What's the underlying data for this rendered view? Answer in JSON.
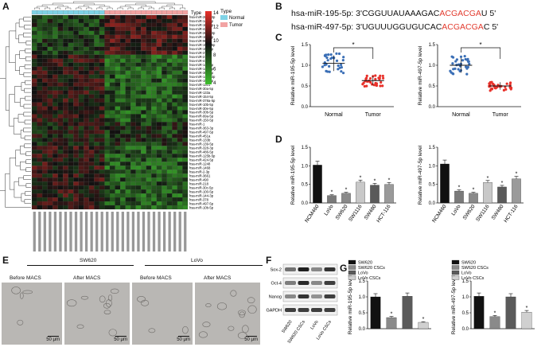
{
  "panels": {
    "A": "A",
    "B": "B",
    "C": "C",
    "D": "D",
    "E": "E",
    "F": "F",
    "G": "G"
  },
  "heatmap": {
    "type_label": "Type",
    "legend_title": "Type",
    "legend_normal": "Normal",
    "legend_tumor": "Tumor",
    "scale_ticks": [
      "14",
      "12",
      "10",
      "8",
      "6",
      "4"
    ],
    "colors": {
      "normal": "#7fd3e6",
      "tumor": "#f2a3a3",
      "high": "#e8312a",
      "mid": "#111111",
      "low": "#3fbf2e"
    },
    "row_labels": [
      "hsa-miR-200b-3p",
      "hsa-miR-141-3p",
      "hsa-miR-183-5p",
      "hsa-miR-429",
      "hsa-miR-200a-3p",
      "hsa-miR-182-5p",
      "hsa-miR-96-5p",
      "hsa-miR-196b-5p",
      "hsa-miR-19b-3p",
      "hsa-miR-378c",
      "hsa-miR-2113",
      "hsa-miR-411",
      "hsa-miR-143-3p",
      "hsa-miR-145-5p",
      "hsa-miR-30d-5p",
      "hsa-miR-148a-3p",
      "hsa-miR-195-5p",
      "hsa-miR-1301",
      "hsa-miR-30a-5p",
      "hsa-miR-133a",
      "hsa-miR-154-5p",
      "hsa-miR-378a-5p",
      "hsa-miR-10b-5p",
      "hsa-miR-30e-5p",
      "hsa-miR-30b-5p",
      "hsa-miR-99a-5p",
      "hsa-miR-150-5p",
      "hsa-miR-1",
      "hsa-miR-363-3p",
      "hsa-miR-497-5p",
      "hsa-miR-451a",
      "hsa-miR-133b",
      "hsa-miR-139-5p",
      "hsa-miR-328-3p",
      "hsa-miR-486-5p",
      "hsa-miR-125b-5p",
      "hsa-miR-424-5p",
      "hsa-miR-1248",
      "hsa-miR-1468",
      "hsa-miR-2-3p",
      "hsa-miR-3661",
      "hsa-miR-490",
      "hsa-miR-218",
      "hsa-miR-30c-5p",
      "hsa-miR-100-5p",
      "hsa-miR-144-3p",
      "hsa-miR-378",
      "hsa-miR-497-5p",
      "hsa-miR-10b-5p"
    ]
  },
  "sequences": {
    "line1_prefix": "hsa-miR-195-5p:  3'CGGUUAUAAAGAC",
    "line1_highlight": "ACGACGA",
    "line1_suffix": "U 5'",
    "line2_prefix": "hsa-miR-497-5p:  3'UGUUUGGUGUCAC",
    "line2_highlight": "ACGACGA",
    "line2_suffix": "C 5'"
  },
  "chart_data": [
    {
      "id": "C1",
      "type": "scatter",
      "ylabel": "Relative miR-195-5p level",
      "categories": [
        "Normal",
        "Tumor"
      ],
      "means": [
        1.05,
        0.63
      ],
      "ylim": [
        0,
        1.5
      ],
      "yticks": [
        "0.0",
        "0.5",
        "1.0",
        "1.5"
      ],
      "significance": "*",
      "colors": [
        "#3b6fb6",
        "#e8312a"
      ]
    },
    {
      "id": "C2",
      "type": "scatter",
      "ylabel": "Relative miR-497-5p level",
      "categories": [
        "Normal",
        "Tumor"
      ],
      "means": [
        1.0,
        0.5
      ],
      "ylim": [
        0,
        1.5
      ],
      "yticks": [
        "0.0",
        "0.5",
        "1.0",
        "1.5"
      ],
      "significance": "*",
      "colors": [
        "#3b6fb6",
        "#e8312a"
      ]
    },
    {
      "id": "D1",
      "type": "bar",
      "ylabel": "Relative miR-195-5p level",
      "categories": [
        "NCM460",
        "LoVo",
        "SW620",
        "SW1116",
        "SW480",
        "HCT-116"
      ],
      "values": [
        1.02,
        0.2,
        0.26,
        0.56,
        0.48,
        0.5
      ],
      "ylim": [
        0,
        1.5
      ],
      "yticks": [
        "0.0",
        "0.5",
        "1.0",
        "1.5"
      ],
      "stars": [
        "",
        "*",
        "*",
        "*",
        "*",
        "*"
      ],
      "colors": [
        "#111111",
        "#7a7a7a",
        "#8a8a8a",
        "#c8c8c8",
        "#5a5a5a",
        "#9a9a9a"
      ]
    },
    {
      "id": "D2",
      "type": "bar",
      "ylabel": "Relative miR-497-5p level",
      "categories": [
        "NCM460",
        "LoVo",
        "SW620",
        "SW1116",
        "SW480",
        "HCT-116"
      ],
      "values": [
        1.05,
        0.32,
        0.26,
        0.55,
        0.43,
        0.65
      ],
      "ylim": [
        0,
        1.5
      ],
      "yticks": [
        "0.0",
        "0.5",
        "1.0",
        "1.5"
      ],
      "stars": [
        "",
        "*",
        "*",
        "*",
        "*",
        "*"
      ],
      "colors": [
        "#111111",
        "#7a7a7a",
        "#8a8a8a",
        "#c8c8c8",
        "#5a5a5a",
        "#9a9a9a"
      ]
    },
    {
      "id": "G1",
      "type": "bar",
      "ylabel": "Relative miR-195-5p level",
      "categories": [
        "SW620",
        "SW620 CSCs",
        "LoVo",
        "LoVo CSCs"
      ],
      "values": [
        1.0,
        0.35,
        1.02,
        0.2
      ],
      "ylim": [
        0,
        1.5
      ],
      "yticks": [
        "0.0",
        "0.5",
        "1.0",
        "1.5"
      ],
      "stars": [
        "",
        "*",
        "",
        "*"
      ],
      "colors": [
        "#111111",
        "#8a8a8a",
        "#5a5a5a",
        "#d0d0d0"
      ]
    },
    {
      "id": "G2",
      "type": "bar",
      "ylabel": "Relative miR-497-5p level",
      "categories": [
        "SW620",
        "SW620 CSCs",
        "LoVo",
        "LoVo CSCs"
      ],
      "values": [
        1.02,
        0.38,
        1.0,
        0.52
      ],
      "ylim": [
        0,
        1.5
      ],
      "yticks": [
        "0.0",
        "0.5",
        "1.0",
        "1.5"
      ],
      "stars": [
        "",
        "*",
        "",
        "*"
      ],
      "colors": [
        "#111111",
        "#8a8a8a",
        "#5a5a5a",
        "#d0d0d0"
      ]
    }
  ],
  "microscopy": {
    "group1": "SW620",
    "group2": "LoVo",
    "before": "Before MACS",
    "after": "After MACS",
    "scale": "50 μm"
  },
  "western": {
    "proteins": [
      "Sox-2",
      "Oct-4",
      "Nanog",
      "GAPDH"
    ],
    "lanes": [
      "SW620",
      "SW620 CSCs",
      "LoVo",
      "LoVo CSCs"
    ]
  }
}
